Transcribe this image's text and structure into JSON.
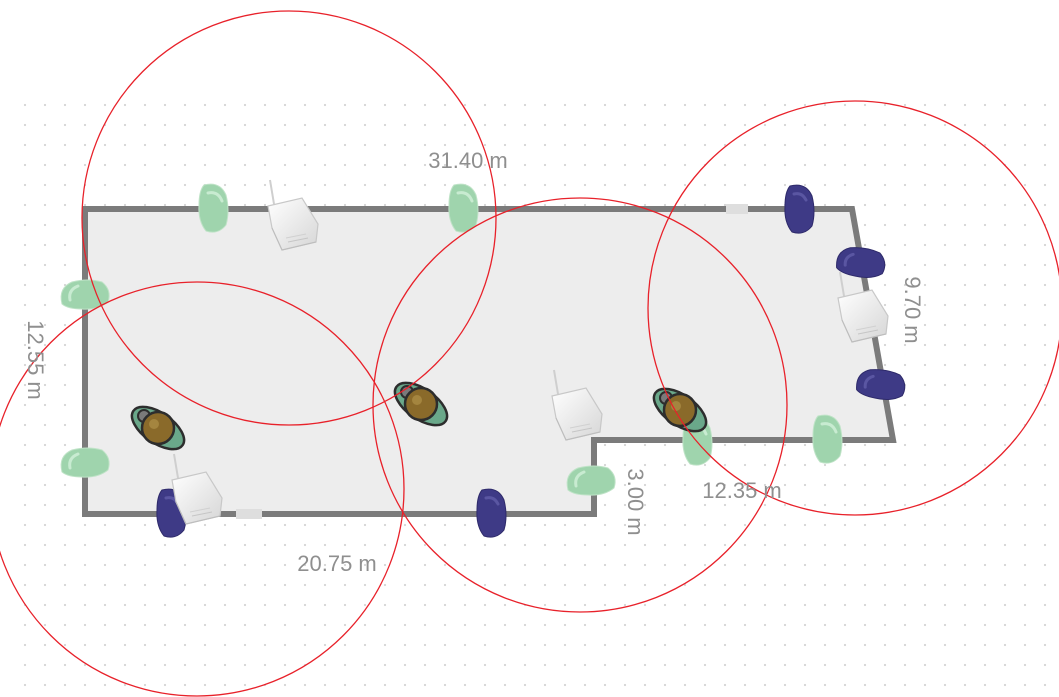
{
  "dimensions": {
    "top": "31.40 m",
    "left": "12.55 m",
    "bottom": "20.75 m",
    "step": "3.00 m",
    "lower_right": "12.35 m",
    "right": "9.70 m"
  },
  "colors": {
    "wall": "#7b7b7b",
    "floor": "#ededed",
    "grid_dot": "#d4d4d4",
    "coverage_circle": "#e8212a",
    "sensor_light": "#9fd4ad",
    "sensor_dark": "#3e3a86",
    "person_body": "#8a6a2a",
    "person_arms": "#6aa88a",
    "access_point": "#f2f2f2"
  },
  "icons": {
    "access_point": "wifi-access-point-icon",
    "sensor_light": "light-sensor-icon",
    "sensor_dark": "dark-sensor-icon",
    "person": "person-topdown-icon"
  }
}
